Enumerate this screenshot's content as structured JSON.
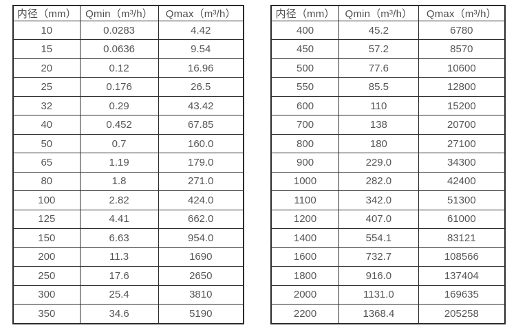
{
  "page": {
    "background_color": "#ffffff",
    "border_color": "#2b2b2b",
    "text_color": "#565656"
  },
  "tables": [
    {
      "name": "flow-rate-table-small-diameters",
      "headers": [
        "内径（mm）",
        "Qmin（m³/h）",
        "Qmax（m³/h）"
      ],
      "rows": [
        [
          "10",
          "0.0283",
          "4.42"
        ],
        [
          "15",
          "0.0636",
          "9.54"
        ],
        [
          "20",
          "0.12",
          "16.96"
        ],
        [
          "25",
          "0.176",
          "26.5"
        ],
        [
          "32",
          "0.29",
          "43.42"
        ],
        [
          "40",
          "0.452",
          "67.85"
        ],
        [
          "50",
          "0.7",
          "160.0"
        ],
        [
          "65",
          "1.19",
          "179.0"
        ],
        [
          "80",
          "1.8",
          "271.0"
        ],
        [
          "100",
          "2.82",
          "424.0"
        ],
        [
          "125",
          "4.41",
          "662.0"
        ],
        [
          "150",
          "6.63",
          "954.0"
        ],
        [
          "200",
          "11.3",
          "1690"
        ],
        [
          "250",
          "17.6",
          "2650"
        ],
        [
          "300",
          "25.4",
          "3810"
        ],
        [
          "350",
          "34.6",
          "5190"
        ]
      ]
    },
    {
      "name": "flow-rate-table-large-diameters",
      "headers": [
        "内径（mm）",
        "Qmin（m³/h）",
        "Qmax（m³/h）"
      ],
      "rows": [
        [
          "400",
          "45.2",
          "6780"
        ],
        [
          "450",
          "57.2",
          "8570"
        ],
        [
          "500",
          "77.6",
          "10600"
        ],
        [
          "550",
          "85.5",
          "12800"
        ],
        [
          "600",
          "110",
          "15200"
        ],
        [
          "700",
          "138",
          "20700"
        ],
        [
          "800",
          "180",
          "27100"
        ],
        [
          "900",
          "229.0",
          "34300"
        ],
        [
          "1000",
          "282.0",
          "42400"
        ],
        [
          "1100",
          "342.0",
          "51300"
        ],
        [
          "1200",
          "407.0",
          "61000"
        ],
        [
          "1400",
          "554.1",
          "83121"
        ],
        [
          "1600",
          "732.7",
          "108566"
        ],
        [
          "1800",
          "916.0",
          "137404"
        ],
        [
          "2000",
          "1131.0",
          "169635"
        ],
        [
          "2200",
          "1368.4",
          "205258"
        ]
      ]
    }
  ],
  "chart_data": {
    "type": "table",
    "title": "",
    "description_columns": [
      "内径（mm）",
      "Qmin（m³/h）",
      "Qmax（m³/h）"
    ]
  }
}
